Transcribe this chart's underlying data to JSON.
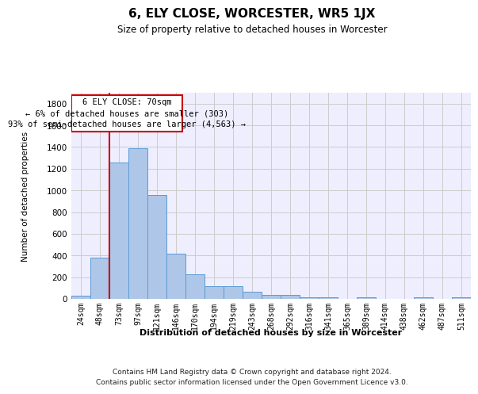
{
  "title": "6, ELY CLOSE, WORCESTER, WR5 1JX",
  "subtitle": "Size of property relative to detached houses in Worcester",
  "xlabel": "Distribution of detached houses by size in Worcester",
  "ylabel": "Number of detached properties",
  "categories": [
    "24sqm",
    "48sqm",
    "73sqm",
    "97sqm",
    "121sqm",
    "146sqm",
    "170sqm",
    "194sqm",
    "219sqm",
    "243sqm",
    "268sqm",
    "292sqm",
    "316sqm",
    "341sqm",
    "365sqm",
    "389sqm",
    "414sqm",
    "438sqm",
    "462sqm",
    "487sqm",
    "511sqm"
  ],
  "values": [
    30,
    380,
    1260,
    1390,
    960,
    415,
    230,
    115,
    115,
    65,
    40,
    38,
    12,
    12,
    0,
    12,
    0,
    0,
    12,
    0,
    12
  ],
  "bar_color": "#aec6e8",
  "bar_edge_color": "#5b9bd5",
  "grid_color": "#cccccc",
  "background_color": "#ffffff",
  "plot_bg_color": "#eeeeff",
  "annotation_line_color": "#cc0000",
  "annotation_box_line1": "6 ELY CLOSE: 70sqm",
  "annotation_box_line2": "← 6% of detached houses are smaller (303)",
  "annotation_box_line3": "93% of semi-detached houses are larger (4,563) →",
  "annotation_box_edge_color": "#cc0000",
  "ylim": [
    0,
    1900
  ],
  "yticks": [
    0,
    200,
    400,
    600,
    800,
    1000,
    1200,
    1400,
    1600,
    1800
  ],
  "footer_line1": "Contains HM Land Registry data © Crown copyright and database right 2024.",
  "footer_line2": "Contains public sector information licensed under the Open Government Licence v3.0."
}
